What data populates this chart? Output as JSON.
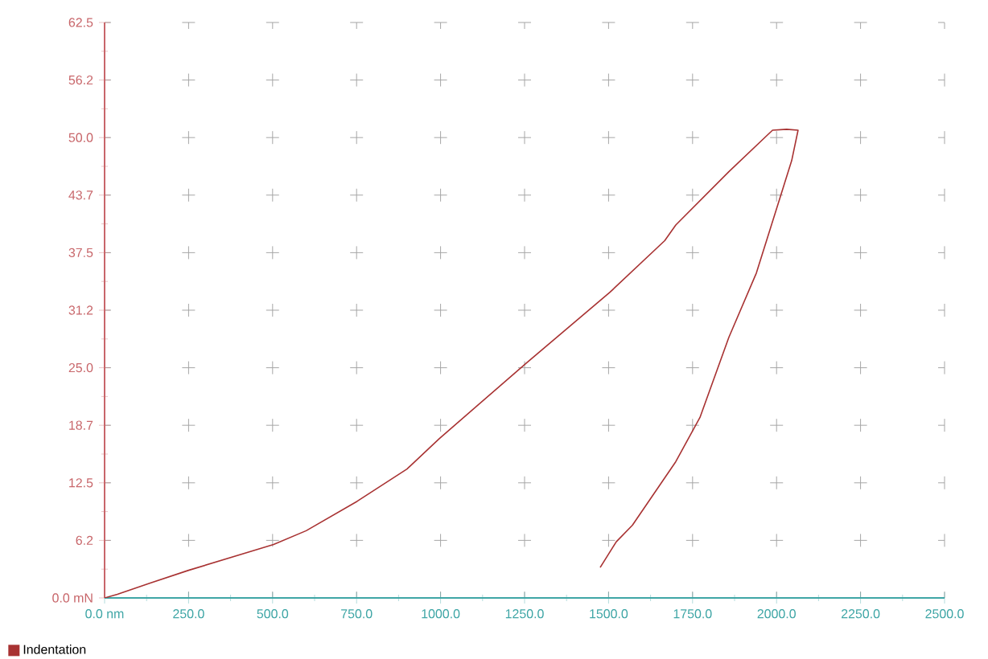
{
  "chart_data": {
    "type": "line",
    "x": [
      0,
      38,
      134,
      250,
      440,
      503,
      600,
      752,
      900,
      996,
      1255,
      1504,
      1667,
      1700,
      1858,
      1988,
      2030,
      2064,
      2045,
      1940,
      1858,
      1772,
      1700,
      1571,
      1523,
      1475
    ],
    "series": [
      {
        "name": "Indentation",
        "color": "#a83232",
        "values": [
          0,
          0.4,
          1.6,
          3.0,
          5.1,
          5.8,
          7.3,
          10.5,
          14.0,
          17.3,
          25.5,
          33.2,
          38.8,
          40.5,
          46.3,
          50.8,
          50.9,
          50.8,
          47.5,
          35.3,
          28.3,
          19.6,
          14.8,
          7.9,
          6.1,
          3.3
        ]
      }
    ],
    "xlim": [
      0,
      2500
    ],
    "xticks": [
      {
        "value": 0,
        "label": "0.0 nm"
      },
      {
        "value": 250,
        "label": "250.0"
      },
      {
        "value": 500,
        "label": "500.0"
      },
      {
        "value": 750,
        "label": "750.0"
      },
      {
        "value": 1000,
        "label": "1000.0"
      },
      {
        "value": 1250,
        "label": "1250.0"
      },
      {
        "value": 1500,
        "label": "1500.0"
      },
      {
        "value": 1750,
        "label": "1750.0"
      },
      {
        "value": 2000,
        "label": "2000.0"
      },
      {
        "value": 2250,
        "label": "2250.0"
      },
      {
        "value": 2500,
        "label": "2500.0"
      }
    ],
    "ylim": [
      0,
      62.5
    ],
    "yticks": [
      {
        "value": 0,
        "label": "0.0 mN"
      },
      {
        "value": 6.25,
        "label": "6.2"
      },
      {
        "value": 12.5,
        "label": "12.5"
      },
      {
        "value": 18.75,
        "label": "18.7"
      },
      {
        "value": 25,
        "label": "25.0"
      },
      {
        "value": 31.25,
        "label": "31.2"
      },
      {
        "value": 37.5,
        "label": "37.5"
      },
      {
        "value": 43.75,
        "label": "43.7"
      },
      {
        "value": 50,
        "label": "50.0"
      },
      {
        "value": 56.25,
        "label": "56.2"
      },
      {
        "value": 62.5,
        "label": "62.5"
      }
    ],
    "grid": true,
    "legend": "bottom left",
    "marker": "none",
    "line_style": "solid"
  }
}
